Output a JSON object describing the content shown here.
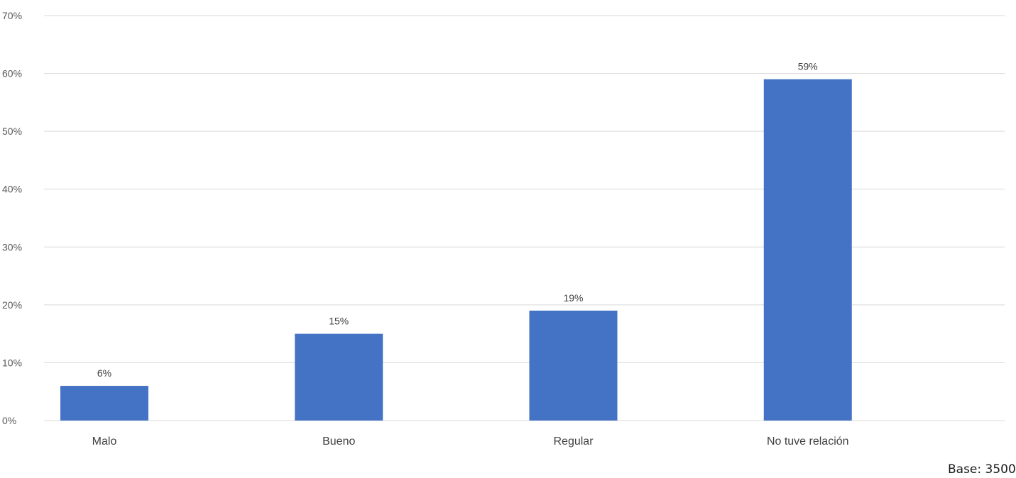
{
  "chart_data": {
    "type": "bar",
    "categories": [
      "Malo",
      "Bueno",
      "Regular",
      "No tuve relación"
    ],
    "values": [
      6,
      15,
      19,
      59
    ],
    "value_labels": [
      "6%",
      "15%",
      "19%",
      "59%"
    ],
    "y_ticks": [
      "0%",
      "10%",
      "20%",
      "30%",
      "40%",
      "50%",
      "60%",
      "70%"
    ],
    "ylim": [
      0,
      70
    ],
    "ystep": 10,
    "title": "",
    "xlabel": "",
    "ylabel": "",
    "grid": true,
    "legend": "none",
    "bar_color": "#4472C4",
    "grid_color": "#D9D9D9"
  },
  "footer": {
    "base_note": "Base: 3500"
  }
}
